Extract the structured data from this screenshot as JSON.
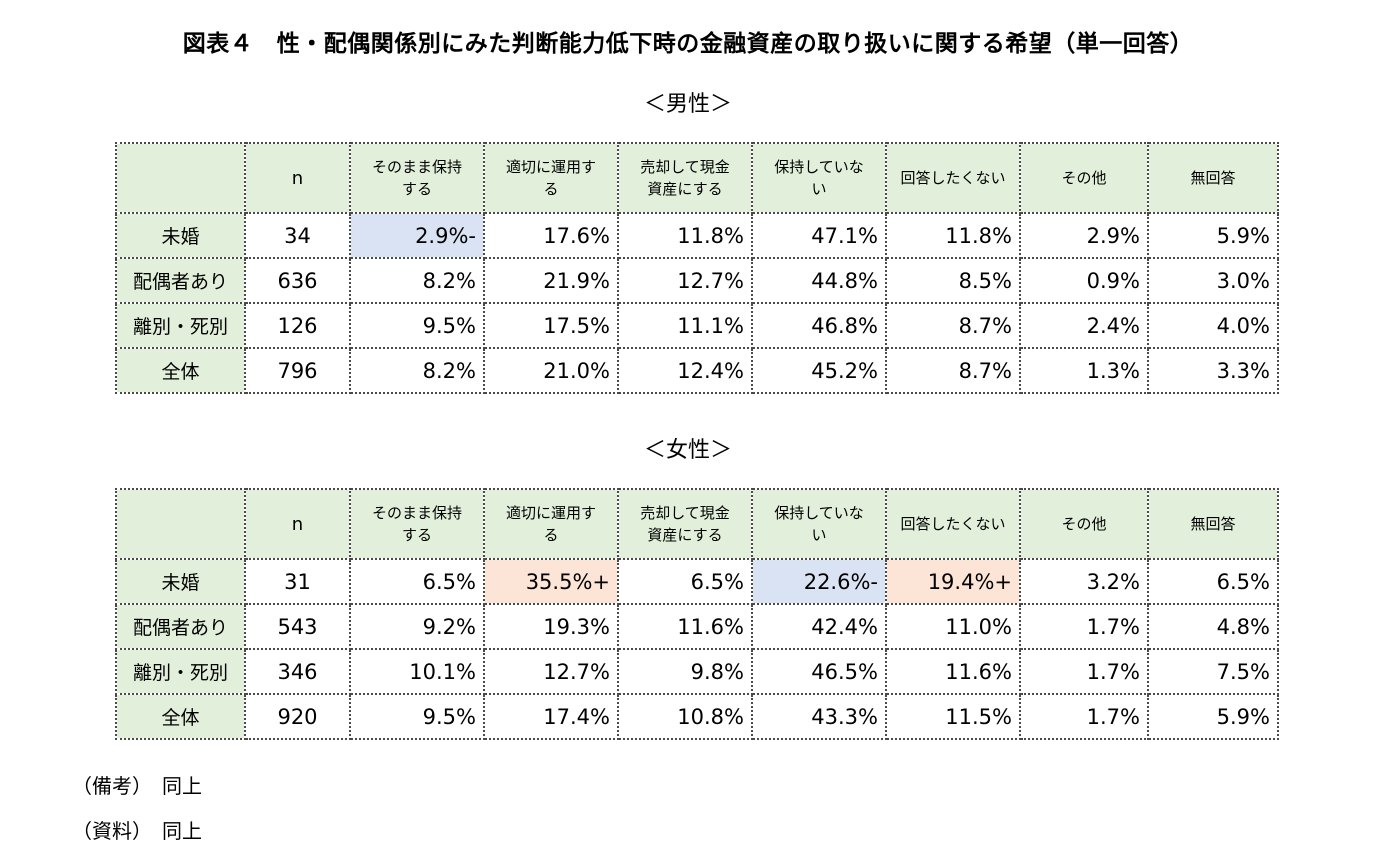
{
  "page": {
    "title": "図表４　性・配偶関係別にみた判断能力低下時の金融資産の取り扱いに関する希望（単一回答）",
    "footnotes": [
      "（備考）　同上",
      "（資料）　同上"
    ]
  },
  "colors": {
    "header_green": "#e2efda",
    "highlight_blue": "#dae3f3",
    "highlight_pink": "#fce4d6",
    "border_dotted": "#4a4a4a"
  },
  "columns": [
    "",
    "n",
    "そのまま保持\nする",
    "適切に運用す\nる",
    "売却して現金\n資産にする",
    "保持していな\nい",
    "回答したくない",
    "その他",
    "無回答"
  ],
  "tables": [
    {
      "title": "＜男性＞",
      "rows": [
        {
          "label": "未婚",
          "n": "34",
          "values": [
            "2.9%-",
            "17.6%",
            "11.8%",
            "47.1%",
            "11.8%",
            "2.9%",
            "5.9%"
          ],
          "hl": {
            "0": "blue"
          }
        },
        {
          "label": "配偶者あり",
          "n": "636",
          "values": [
            "8.2%",
            "21.9%",
            "12.7%",
            "44.8%",
            "8.5%",
            "0.9%",
            "3.0%"
          ],
          "hl": {}
        },
        {
          "label": "離別・死別",
          "n": "126",
          "values": [
            "9.5%",
            "17.5%",
            "11.1%",
            "46.8%",
            "8.7%",
            "2.4%",
            "4.0%"
          ],
          "hl": {}
        },
        {
          "label": "全体",
          "n": "796",
          "values": [
            "8.2%",
            "21.0%",
            "12.4%",
            "45.2%",
            "8.7%",
            "1.3%",
            "3.3%"
          ],
          "hl": {}
        }
      ]
    },
    {
      "title": "＜女性＞",
      "rows": [
        {
          "label": "未婚",
          "n": "31",
          "values": [
            "6.5%",
            "35.5%+",
            "6.5%",
            "22.6%-",
            "19.4%+",
            "3.2%",
            "6.5%"
          ],
          "hl": {
            "1": "pink",
            "3": "blue",
            "4": "pink"
          }
        },
        {
          "label": "配偶者あり",
          "n": "543",
          "values": [
            "9.2%",
            "19.3%",
            "11.6%",
            "42.4%",
            "11.0%",
            "1.7%",
            "4.8%"
          ],
          "hl": {}
        },
        {
          "label": "離別・死別",
          "n": "346",
          "values": [
            "10.1%",
            "12.7%",
            "9.8%",
            "46.5%",
            "11.6%",
            "1.7%",
            "7.5%"
          ],
          "hl": {}
        },
        {
          "label": "全体",
          "n": "920",
          "values": [
            "9.5%",
            "17.4%",
            "10.8%",
            "43.3%",
            "11.5%",
            "1.7%",
            "5.9%"
          ],
          "hl": {}
        }
      ]
    }
  ],
  "highlighted_cells": [
    {
      "table": "男性",
      "row": "未婚",
      "column": "そのまま保持する",
      "value": "2.9%-",
      "color": "blue"
    },
    {
      "table": "女性",
      "row": "未婚",
      "column": "適切に運用する",
      "value": "35.5%+",
      "color": "pink"
    },
    {
      "table": "女性",
      "row": "未婚",
      "column": "保持していない",
      "value": "22.6%-",
      "color": "blue"
    },
    {
      "table": "女性",
      "row": "未婚",
      "column": "回答したくない",
      "value": "19.4%+",
      "color": "pink"
    }
  ]
}
